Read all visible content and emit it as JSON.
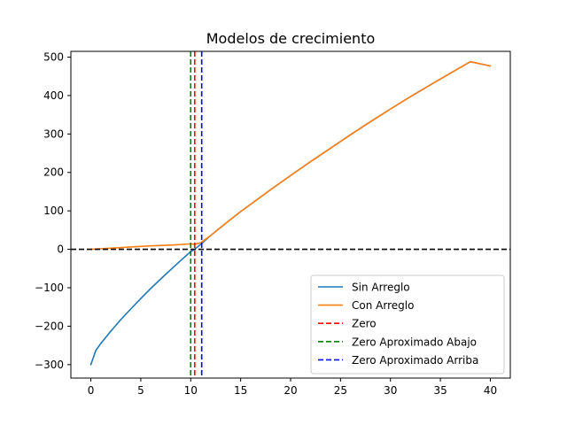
{
  "chart_data": {
    "type": "line",
    "title": "Modelos de crecimiento",
    "xlabel": "",
    "ylabel": "",
    "xlim": [
      -2,
      42
    ],
    "ylim": [
      -335,
      515
    ],
    "xticks": [
      0,
      5,
      10,
      15,
      20,
      25,
      30,
      35,
      40
    ],
    "yticks": [
      -300,
      -200,
      -100,
      0,
      100,
      200,
      300,
      400,
      500
    ],
    "xtick_labels": [
      "0",
      "5",
      "10",
      "15",
      "20",
      "25",
      "30",
      "35",
      "40"
    ],
    "ytick_labels": [
      "−300",
      "−200",
      "−100",
      "0",
      "100",
      "200",
      "300",
      "400",
      "500"
    ],
    "grid": false,
    "legend_position": "lower-right",
    "series": [
      {
        "name": "Sin Arreglo",
        "color": "#1f77b4",
        "style": "solid",
        "x": [
          0,
          0.5,
          1,
          2,
          3,
          4,
          5,
          6,
          7,
          8,
          9,
          10,
          10.4,
          11,
          12,
          13,
          14,
          15,
          16,
          18,
          20,
          22,
          24,
          26,
          28,
          30,
          32,
          34,
          36,
          38,
          40
        ],
        "y": [
          -300,
          -263,
          -245,
          -213,
          -183,
          -155,
          -128,
          -102,
          -77,
          -53,
          -29,
          -6,
          0,
          13,
          36,
          57,
          78,
          98,
          117,
          155,
          192,
          228,
          263,
          298,
          332,
          365,
          397,
          428,
          458,
          488,
          477
        ]
      },
      {
        "name": "Con Arreglo",
        "color": "#ff7f0e",
        "style": "solid",
        "x": [
          0,
          2,
          4,
          6,
          8,
          10,
          10.4,
          11,
          12,
          13,
          14,
          15,
          16,
          18,
          20,
          22,
          24,
          26,
          28,
          30,
          32,
          34,
          36,
          38,
          40
        ],
        "y": [
          0,
          3,
          6,
          9,
          11,
          14,
          13,
          17,
          36,
          57,
          78,
          98,
          117,
          155,
          192,
          228,
          263,
          298,
          332,
          365,
          397,
          428,
          458,
          488,
          477
        ]
      }
    ],
    "reference_lines": [
      {
        "name": "Zero",
        "orientation": "vertical",
        "value": 10.4,
        "color": "#ff0000",
        "style": "dashed"
      },
      {
        "name": "Zero Aproximado Abajo",
        "orientation": "vertical",
        "value": 10.0,
        "color": "#008000",
        "style": "dashed"
      },
      {
        "name": "Zero Aproximado Arriba",
        "orientation": "vertical",
        "value": 11.1,
        "color": "#0000ff",
        "style": "dashed"
      },
      {
        "name": "",
        "orientation": "horizontal",
        "value": 0,
        "color": "#000000",
        "style": "dashed"
      }
    ]
  }
}
